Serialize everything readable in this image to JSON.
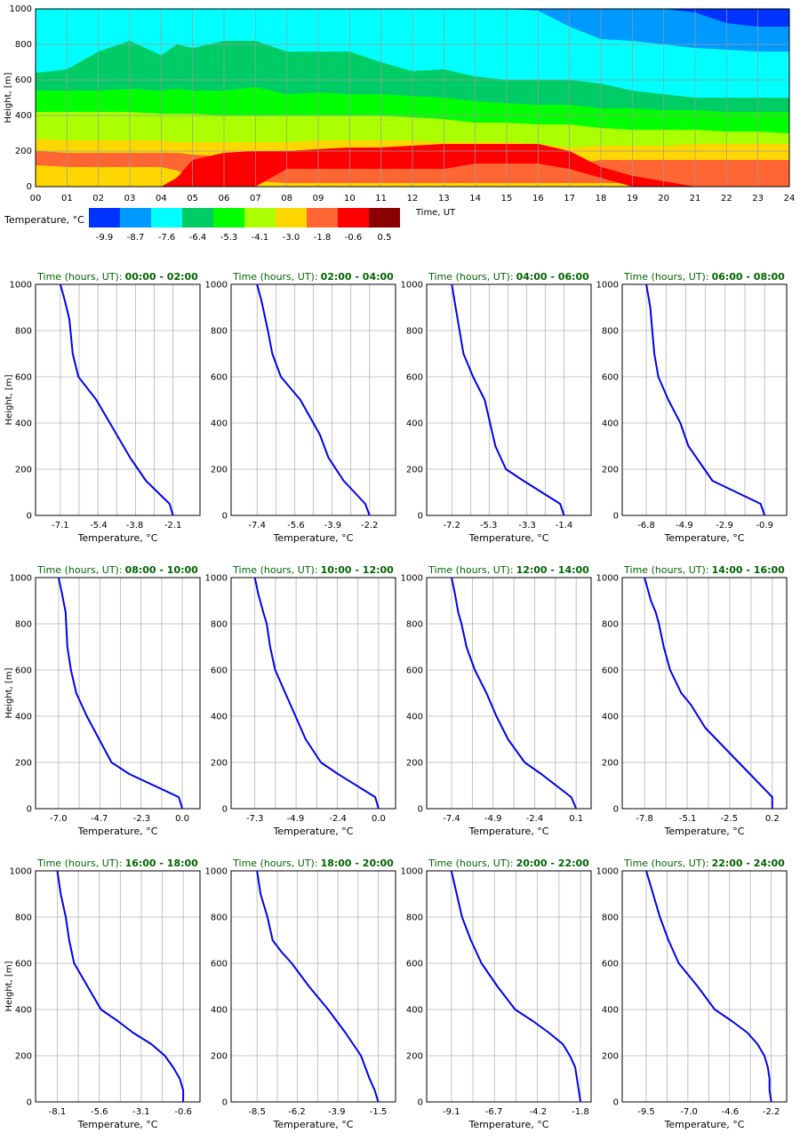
{
  "chart_data": [
    {
      "type": "heatmap",
      "xlabel": "Time, UT",
      "ylabel": "Height, [m]",
      "xlim": [
        0,
        24
      ],
      "ylim": [
        0,
        1000
      ],
      "x_ticks": [
        "00",
        "01",
        "02",
        "03",
        "04",
        "05",
        "06",
        "07",
        "08",
        "09",
        "10",
        "11",
        "12",
        "13",
        "14",
        "15",
        "16",
        "17",
        "18",
        "19",
        "20",
        "21",
        "22",
        "23",
        "24"
      ],
      "y_ticks": [
        "0",
        "200",
        "400",
        "600",
        "800",
        "1000"
      ],
      "grid": true,
      "legend": {
        "title": "Temperature, °C",
        "placement": "bottom-left",
        "labels": [
          "-9.9",
          "-8.7",
          "-7.6",
          "-6.4",
          "-5.3",
          "-4.1",
          "-3.0",
          "-1.8",
          "-0.6",
          "0.5"
        ],
        "colors": [
          "#0033ff",
          "#0099ff",
          "#00ffff",
          "#00cc66",
          "#00ff00",
          "#aaff00",
          "#ffd700",
          "#ff6633",
          "#ff0000",
          "#8b0000"
        ]
      },
      "boundaries_m": {
        "x_hours": [
          0,
          1,
          2,
          3,
          4,
          4.5,
          5,
          6,
          7,
          8,
          9,
          10,
          11,
          12,
          13,
          14,
          15,
          16,
          17,
          18,
          19,
          20,
          21,
          22,
          23,
          24
        ],
        "min_neg_9_9": [
          1000,
          1000,
          1000,
          1000,
          1000,
          1000,
          1000,
          1000,
          1000,
          1000,
          1000,
          1000,
          1000,
          1000,
          1000,
          1000,
          1000,
          1000,
          1000,
          1000,
          1000,
          1000,
          980,
          920,
          900,
          900
        ],
        "min_neg_8_7": [
          1000,
          1000,
          1000,
          1000,
          1000,
          1000,
          1000,
          1000,
          1000,
          1000,
          1000,
          1000,
          1000,
          1000,
          1000,
          1000,
          1000,
          990,
          900,
          830,
          820,
          800,
          780,
          770,
          760,
          760
        ],
        "min_neg_7_6": [
          640,
          660,
          760,
          820,
          740,
          800,
          780,
          820,
          820,
          760,
          760,
          760,
          700,
          650,
          660,
          620,
          600,
          600,
          600,
          580,
          540,
          520,
          500,
          500,
          500,
          500
        ],
        "min_neg_6_4": [
          540,
          540,
          540,
          550,
          540,
          550,
          540,
          540,
          560,
          520,
          530,
          520,
          520,
          510,
          500,
          480,
          470,
          460,
          460,
          440,
          440,
          430,
          430,
          420,
          420,
          420
        ],
        "min_neg_5_3": [
          420,
          420,
          420,
          420,
          410,
          410,
          410,
          400,
          400,
          400,
          400,
          400,
          400,
          390,
          380,
          360,
          360,
          350,
          350,
          330,
          320,
          320,
          320,
          310,
          310,
          300
        ],
        "min_neg_4_1": [
          270,
          260,
          260,
          260,
          260,
          250,
          250,
          250,
          250,
          250,
          260,
          260,
          260,
          260,
          250,
          250,
          250,
          240,
          220,
          230,
          230,
          230,
          240,
          240,
          240,
          240
        ],
        "min_neg_3_0": [
          200,
          190,
          190,
          190,
          190,
          190,
          180,
          170,
          170,
          170,
          170,
          170,
          170,
          160,
          150,
          150,
          150,
          150,
          120,
          150,
          150,
          150,
          150,
          150,
          150,
          150
        ],
        "min_neg_1_8": [
          120,
          110,
          110,
          110,
          110,
          90,
          60,
          40,
          30,
          20,
          20,
          20,
          20,
          20,
          20,
          20,
          20,
          20,
          20,
          20,
          20,
          20,
          0,
          0,
          0,
          0
        ],
        "min_neg_0_6": [
          0,
          0,
          0,
          0,
          0,
          50,
          150,
          190,
          200,
          200,
          210,
          220,
          220,
          230,
          240,
          240,
          240,
          240,
          200,
          110,
          60,
          30,
          0,
          0,
          0,
          0
        ],
        "min_neg_0_6_hi": [
          0,
          0,
          0,
          0,
          0,
          0,
          0,
          0,
          0,
          100,
          100,
          100,
          100,
          100,
          100,
          130,
          130,
          130,
          100,
          50,
          0,
          0,
          0,
          0,
          0,
          0
        ]
      }
    },
    {
      "type": "line",
      "title_prefix": "Time (hours, UT):",
      "title_range": "00:00 - 02:00",
      "xlabel": "Temperature, °C",
      "ylabel": "Height, [m]",
      "x_ticks": [
        "-7.1",
        "-5.4",
        "-3.8",
        "-2.1"
      ],
      "xlim": [
        -8.2,
        -0.9
      ],
      "ylim": [
        0,
        1000
      ],
      "y_ticks": [
        "0",
        "200",
        "400",
        "600",
        "800",
        "1000"
      ],
      "series": [
        {
          "x": [
            -2.1,
            -2.25,
            -3.3,
            -4.0,
            -4.6,
            -5.5,
            -6.3,
            -6.55,
            -6.7,
            -6.9,
            -7.1
          ],
          "y": [
            0,
            50,
            150,
            250,
            350,
            500,
            600,
            700,
            850,
            930,
            1000
          ]
        }
      ]
    },
    {
      "type": "line",
      "title_prefix": "Time (hours, UT):",
      "title_range": "02:00 - 04:00",
      "xlabel": "Temperature, °C",
      "ylabel": "",
      "x_ticks": [
        "-7.4",
        "-5.6",
        "-3.9",
        "-2.2"
      ],
      "xlim": [
        -8.6,
        -1.0
      ],
      "ylim": [
        0,
        1000
      ],
      "y_ticks": [
        "0",
        "200",
        "400",
        "600",
        "800",
        "1000"
      ],
      "series": [
        {
          "x": [
            -2.2,
            -2.4,
            -3.4,
            -4.1,
            -4.5,
            -5.4,
            -6.3,
            -6.7,
            -6.9,
            -7.2,
            -7.4
          ],
          "y": [
            0,
            50,
            150,
            250,
            350,
            500,
            600,
            700,
            800,
            930,
            1000
          ]
        }
      ]
    },
    {
      "type": "line",
      "title_prefix": "Time (hours, UT):",
      "title_range": "04:00 - 06:00",
      "xlabel": "Temperature, °C",
      "ylabel": "",
      "x_ticks": [
        "-7.2",
        "-5.3",
        "-3.3",
        "-1.4"
      ],
      "xlim": [
        -8.5,
        0.0
      ],
      "ylim": [
        0,
        1000
      ],
      "y_ticks": [
        "0",
        "200",
        "400",
        "600",
        "800",
        "1000"
      ],
      "series": [
        {
          "x": [
            -1.4,
            -1.6,
            -3.5,
            -4.4,
            -4.95,
            -5.5,
            -6.1,
            -6.6,
            -6.8,
            -7.0,
            -7.2
          ],
          "y": [
            0,
            50,
            150,
            200,
            300,
            500,
            600,
            700,
            800,
            900,
            1000
          ]
        }
      ]
    },
    {
      "type": "line",
      "title_prefix": "Time (hours, UT):",
      "title_range": "06:00 - 08:00",
      "xlabel": "Temperature, °C",
      "ylabel": "",
      "x_ticks": [
        "-6.8",
        "-4.9",
        "-2.9",
        "-0.9"
      ],
      "xlim": [
        -8.0,
        0.2
      ],
      "ylim": [
        0,
        1000
      ],
      "y_ticks": [
        "0",
        "200",
        "400",
        "600",
        "800",
        "1000"
      ],
      "series": [
        {
          "x": [
            -0.9,
            -1.1,
            -3.5,
            -4.3,
            -4.7,
            -5.1,
            -5.7,
            -6.2,
            -6.4,
            -6.5,
            -6.6,
            -6.8
          ],
          "y": [
            0,
            50,
            150,
            250,
            300,
            400,
            500,
            600,
            700,
            800,
            900,
            1000
          ]
        }
      ]
    },
    {
      "type": "line",
      "title_prefix": "Time (hours, UT):",
      "title_range": "08:00 - 10:00",
      "xlabel": "Temperature, °C",
      "ylabel": "Height, [m]",
      "x_ticks": [
        "-7.0",
        "-4.7",
        "-2.3",
        "0.0"
      ],
      "xlim": [
        -8.3,
        1.0
      ],
      "ylim": [
        0,
        1000
      ],
      "y_ticks": [
        "0",
        "200",
        "400",
        "600",
        "800",
        "1000"
      ],
      "series": [
        {
          "x": [
            0.0,
            -0.2,
            -3.0,
            -4.0,
            -4.7,
            -5.4,
            -6.0,
            -6.3,
            -6.5,
            -6.6,
            -6.8,
            -7.0
          ],
          "y": [
            0,
            50,
            150,
            200,
            300,
            400,
            500,
            600,
            700,
            850,
            930,
            1000
          ]
        }
      ]
    },
    {
      "type": "line",
      "title_prefix": "Time (hours, UT):",
      "title_range": "10:00 - 12:00",
      "xlabel": "Temperature, °C",
      "ylabel": "",
      "x_ticks": [
        "-7.3",
        "-4.9",
        "-2.4",
        "0.0"
      ],
      "xlim": [
        -8.7,
        1.0
      ],
      "ylim": [
        0,
        1000
      ],
      "y_ticks": [
        "0",
        "200",
        "400",
        "600",
        "800",
        "1000"
      ],
      "series": [
        {
          "x": [
            0.0,
            -0.2,
            -2.4,
            -3.4,
            -4.3,
            -4.9,
            -5.5,
            -6.1,
            -6.4,
            -6.6,
            -6.8,
            -7.1,
            -7.3
          ],
          "y": [
            0,
            50,
            150,
            200,
            300,
            400,
            500,
            600,
            700,
            800,
            850,
            930,
            1000
          ]
        }
      ]
    },
    {
      "type": "line",
      "title_prefix": "Time (hours, UT):",
      "title_range": "12:00 - 14:00",
      "xlabel": "Temperature, °C",
      "ylabel": "",
      "x_ticks": [
        "-7.4",
        "-4.9",
        "-2.4",
        "0.1"
      ],
      "xlim": [
        -8.9,
        1.0
      ],
      "ylim": [
        0,
        1000
      ],
      "y_ticks": [
        "0",
        "200",
        "400",
        "600",
        "800",
        "1000"
      ],
      "series": [
        {
          "x": [
            0.1,
            -0.2,
            -2.0,
            -3.0,
            -4.0,
            -4.7,
            -5.3,
            -6.0,
            -6.5,
            -6.8,
            -7.0,
            -7.2,
            -7.4
          ],
          "y": [
            0,
            50,
            150,
            200,
            300,
            400,
            500,
            600,
            700,
            800,
            850,
            930,
            1000
          ]
        }
      ]
    },
    {
      "type": "line",
      "title_prefix": "Time (hours, UT):",
      "title_range": "14:00 - 16:00",
      "xlabel": "Temperature, °C",
      "ylabel": "",
      "x_ticks": [
        "-7.8",
        "-5.1",
        "-2.5",
        "0.2"
      ],
      "xlim": [
        -9.2,
        1.1
      ],
      "ylim": [
        0,
        1000
      ],
      "y_ticks": [
        "0",
        "200",
        "400",
        "600",
        "800",
        "1000"
      ],
      "series": [
        {
          "x": [
            0.2,
            0.2,
            -1.2,
            -2.6,
            -4.0,
            -4.9,
            -5.5,
            -6.2,
            -6.6,
            -6.9,
            -7.1,
            -7.4,
            -7.6,
            -7.8
          ],
          "y": [
            0,
            50,
            150,
            250,
            350,
            450,
            500,
            600,
            700,
            800,
            850,
            900,
            950,
            1000
          ]
        }
      ]
    },
    {
      "type": "line",
      "title_prefix": "Time (hours, UT):",
      "title_range": "16:00 - 18:00",
      "xlabel": "Temperature, °C",
      "ylabel": "Height, [m]",
      "x_ticks": [
        "-8.1",
        "-5.6",
        "-3.1",
        "-0.6"
      ],
      "xlim": [
        -9.4,
        0.4
      ],
      "ylim": [
        0,
        1000
      ],
      "y_ticks": [
        "0",
        "200",
        "400",
        "600",
        "800",
        "1000"
      ],
      "series": [
        {
          "x": [
            -0.6,
            -0.6,
            -0.8,
            -1.2,
            -1.7,
            -2.5,
            -3.6,
            -4.5,
            -5.5,
            -6.3,
            -6.7,
            -7.1,
            -7.4,
            -7.6,
            -7.9,
            -8.1
          ],
          "y": [
            0,
            50,
            100,
            150,
            200,
            250,
            300,
            350,
            400,
            500,
            550,
            600,
            700,
            800,
            900,
            1000
          ]
        }
      ]
    },
    {
      "type": "line",
      "title_prefix": "Time (hours, UT):",
      "title_range": "18:00 - 20:00",
      "xlabel": "Temperature, °C",
      "ylabel": "",
      "x_ticks": [
        "-8.5",
        "-6.2",
        "-3.9",
        "-1.5"
      ],
      "xlim": [
        -10.0,
        -0.5
      ],
      "ylim": [
        0,
        1000
      ],
      "y_ticks": [
        "0",
        "200",
        "400",
        "600",
        "800",
        "1000"
      ],
      "series": [
        {
          "x": [
            -1.5,
            -1.7,
            -2.0,
            -2.5,
            -3.4,
            -4.4,
            -5.5,
            -6.5,
            -7.1,
            -7.6,
            -7.9,
            -8.1,
            -8.3,
            -8.5
          ],
          "y": [
            0,
            50,
            100,
            200,
            300,
            400,
            500,
            600,
            650,
            700,
            800,
            850,
            900,
            1000
          ]
        }
      ]
    },
    {
      "type": "line",
      "title_prefix": "Time (hours, UT):",
      "title_range": "20:00 - 22:00",
      "xlabel": "Temperature, °C",
      "ylabel": "",
      "x_ticks": [
        "-9.1",
        "-6.7",
        "-4.2",
        "-1.8"
      ],
      "xlim": [
        -10.5,
        -1.2
      ],
      "ylim": [
        0,
        1000
      ],
      "y_ticks": [
        "0",
        "200",
        "400",
        "600",
        "800",
        "1000"
      ],
      "series": [
        {
          "x": [
            -1.8,
            -1.9,
            -2.0,
            -2.1,
            -2.4,
            -2.8,
            -3.6,
            -4.5,
            -5.5,
            -6.5,
            -7.4,
            -8.0,
            -8.5,
            -8.8,
            -9.1
          ],
          "y": [
            0,
            50,
            100,
            150,
            200,
            250,
            300,
            350,
            400,
            500,
            600,
            700,
            800,
            900,
            1000
          ]
        }
      ]
    },
    {
      "type": "line",
      "title_prefix": "Time (hours, UT):",
      "title_range": "22:00 - 24:00",
      "xlabel": "Temperature, °C",
      "ylabel": "",
      "x_ticks": [
        "-9.5",
        "-7.0",
        "-4.6",
        "-2.2"
      ],
      "xlim": [
        -10.9,
        -1.3
      ],
      "ylim": [
        0,
        1000
      ],
      "y_ticks": [
        "0",
        "200",
        "400",
        "600",
        "800",
        "1000"
      ],
      "series": [
        {
          "x": [
            -2.2,
            -2.3,
            -2.3,
            -2.4,
            -2.6,
            -3.0,
            -3.6,
            -4.5,
            -5.5,
            -6.5,
            -7.6,
            -8.2,
            -8.7,
            -9.1,
            -9.5
          ],
          "y": [
            0,
            50,
            100,
            150,
            200,
            250,
            300,
            350,
            400,
            500,
            600,
            700,
            800,
            900,
            1000
          ]
        }
      ]
    }
  ]
}
